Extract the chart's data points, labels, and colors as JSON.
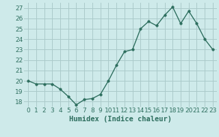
{
  "x": [
    0,
    1,
    2,
    3,
    4,
    5,
    6,
    7,
    8,
    9,
    10,
    11,
    12,
    13,
    14,
    15,
    16,
    17,
    18,
    19,
    20,
    21,
    22,
    23
  ],
  "y": [
    20.0,
    19.7,
    19.7,
    19.7,
    19.2,
    18.5,
    17.7,
    18.2,
    18.3,
    18.7,
    20.0,
    21.5,
    22.8,
    23.0,
    25.0,
    25.7,
    25.3,
    26.3,
    27.1,
    25.5,
    26.7,
    25.5,
    24.0,
    23.0
  ],
  "line_color": "#2d6e5e",
  "marker_color": "#2d6e5e",
  "bg_color": "#ceeaea",
  "grid_color": "#aacaca",
  "xlabel": "Humidex (Indice chaleur)",
  "ylim": [
    17.5,
    27.5
  ],
  "xlim": [
    -0.5,
    23.5
  ],
  "yticks": [
    18,
    19,
    20,
    21,
    22,
    23,
    24,
    25,
    26,
    27
  ],
  "xticks": [
    0,
    1,
    2,
    3,
    4,
    5,
    6,
    7,
    8,
    9,
    10,
    11,
    12,
    13,
    14,
    15,
    16,
    17,
    18,
    19,
    20,
    21,
    22,
    23
  ],
  "tick_label_fontsize": 6.5,
  "xlabel_fontsize": 7.5,
  "marker_size": 2.5,
  "line_width": 1.0
}
